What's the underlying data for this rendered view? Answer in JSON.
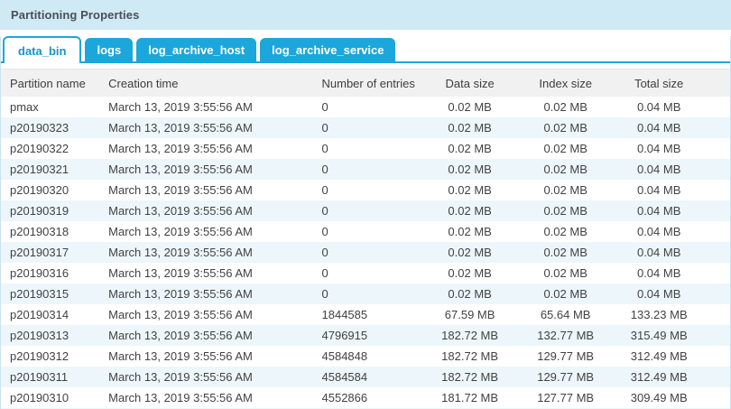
{
  "panel": {
    "title": "Partitioning Properties"
  },
  "tabs": [
    {
      "label": "data_bin",
      "active": true
    },
    {
      "label": "logs",
      "active": false
    },
    {
      "label": "log_archive_host",
      "active": false
    },
    {
      "label": "log_archive_service",
      "active": false
    }
  ],
  "table": {
    "columns": [
      "Partition name",
      "Creation time",
      "Number of entries",
      "Data size",
      "Index size",
      "Total size"
    ],
    "rows": [
      [
        "pmax",
        "March 13, 2019 3:55:56 AM",
        "0",
        "0.02 MB",
        "0.02 MB",
        "0.04 MB"
      ],
      [
        "p20190323",
        "March 13, 2019 3:55:56 AM",
        "0",
        "0.02 MB",
        "0.02 MB",
        "0.04 MB"
      ],
      [
        "p20190322",
        "March 13, 2019 3:55:56 AM",
        "0",
        "0.02 MB",
        "0.02 MB",
        "0.04 MB"
      ],
      [
        "p20190321",
        "March 13, 2019 3:55:56 AM",
        "0",
        "0.02 MB",
        "0.02 MB",
        "0.04 MB"
      ],
      [
        "p20190320",
        "March 13, 2019 3:55:56 AM",
        "0",
        "0.02 MB",
        "0.02 MB",
        "0.04 MB"
      ],
      [
        "p20190319",
        "March 13, 2019 3:55:56 AM",
        "0",
        "0.02 MB",
        "0.02 MB",
        "0.04 MB"
      ],
      [
        "p20190318",
        "March 13, 2019 3:55:56 AM",
        "0",
        "0.02 MB",
        "0.02 MB",
        "0.04 MB"
      ],
      [
        "p20190317",
        "March 13, 2019 3:55:56 AM",
        "0",
        "0.02 MB",
        "0.02 MB",
        "0.04 MB"
      ],
      [
        "p20190316",
        "March 13, 2019 3:55:56 AM",
        "0",
        "0.02 MB",
        "0.02 MB",
        "0.04 MB"
      ],
      [
        "p20190315",
        "March 13, 2019 3:55:56 AM",
        "0",
        "0.02 MB",
        "0.02 MB",
        "0.04 MB"
      ],
      [
        "p20190314",
        "March 13, 2019 3:55:56 AM",
        "1844585",
        "67.59 MB",
        "65.64 MB",
        "133.23 MB"
      ],
      [
        "p20190313",
        "March 13, 2019 3:55:56 AM",
        "4796915",
        "182.72 MB",
        "132.77 MB",
        "315.49 MB"
      ],
      [
        "p20190312",
        "March 13, 2019 3:55:56 AM",
        "4584848",
        "182.72 MB",
        "129.77 MB",
        "312.49 MB"
      ],
      [
        "p20190311",
        "March 13, 2019 3:55:56 AM",
        "4584584",
        "182.72 MB",
        "129.77 MB",
        "312.49 MB"
      ],
      [
        "p20190310",
        "March 13, 2019 3:55:56 AM",
        "4552866",
        "181.72 MB",
        "127.77 MB",
        "309.49 MB"
      ]
    ]
  },
  "colors": {
    "accent": "#1ba7dc",
    "titlebar_bg": "#cfeaf5",
    "title_text": "#4a4f55",
    "active_tab_text": "#1595cb",
    "header_bg": "#f1f1f1",
    "header_text": "#3d3d3d",
    "cell_text": "#424242",
    "alt_row": "#edf6fa",
    "frame": "#c9e4f0"
  }
}
